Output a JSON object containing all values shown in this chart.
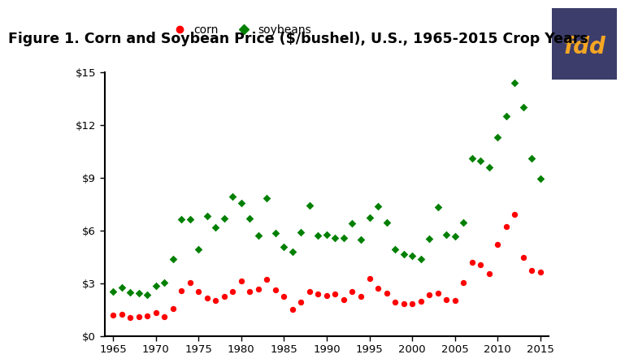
{
  "title": "Figure 1. Corn and Soybean Price ($/bushel), U.S., 1965-2015 Crop Years",
  "years": [
    1965,
    1966,
    1967,
    1968,
    1969,
    1970,
    1971,
    1972,
    1973,
    1974,
    1975,
    1976,
    1977,
    1978,
    1979,
    1980,
    1981,
    1982,
    1983,
    1984,
    1985,
    1986,
    1987,
    1988,
    1989,
    1990,
    1991,
    1992,
    1993,
    1994,
    1995,
    1996,
    1997,
    1998,
    1999,
    2000,
    2001,
    2002,
    2003,
    2004,
    2005,
    2006,
    2007,
    2008,
    2009,
    2010,
    2011,
    2012,
    2013,
    2014,
    2015
  ],
  "corn": [
    1.16,
    1.24,
    1.03,
    1.08,
    1.15,
    1.33,
    1.08,
    1.57,
    2.55,
    3.02,
    2.54,
    2.15,
    2.02,
    2.25,
    2.52,
    3.11,
    2.5,
    2.68,
    3.21,
    2.63,
    2.23,
    1.5,
    1.94,
    2.54,
    2.36,
    2.28,
    2.37,
    2.07,
    2.5,
    2.26,
    3.24,
    2.71,
    2.43,
    1.94,
    1.82,
    1.85,
    1.97,
    2.32,
    2.42,
    2.06,
    2.0,
    3.04,
    4.2,
    4.06,
    3.55,
    5.18,
    6.22,
    6.89,
    4.46,
    3.7,
    3.61
  ],
  "soybeans": [
    2.54,
    2.75,
    2.49,
    2.43,
    2.35,
    2.85,
    3.03,
    4.37,
    6.64,
    6.64,
    4.92,
    6.81,
    6.19,
    6.66,
    7.94,
    7.57,
    6.67,
    5.71,
    7.83,
    5.84,
    5.05,
    4.78,
    5.88,
    7.42,
    5.69,
    5.74,
    5.58,
    5.56,
    6.4,
    5.48,
    6.72,
    7.35,
    6.47,
    4.93,
    4.63,
    4.54,
    4.38,
    5.53,
    7.34,
    5.74,
    5.66,
    6.43,
    10.1,
    9.97,
    9.59,
    11.3,
    12.5,
    14.4,
    13.0,
    10.1,
    8.95
  ],
  "corn_color": "#FF0000",
  "soybean_color": "#008000",
  "corn_marker": "o",
  "soybean_marker": "D",
  "title_fontsize": 12.5,
  "fdd_bg_color": "#3d3d6b",
  "fdd_text_color": "#f5a623",
  "xlim": [
    1964,
    2016
  ],
  "ylim": [
    0,
    15
  ],
  "yticks": [
    0,
    3,
    6,
    9,
    12,
    15
  ],
  "ytick_labels": [
    "$0",
    "$3",
    "$6",
    "$9",
    "$12",
    "$15"
  ],
  "xticks": [
    1965,
    1970,
    1975,
    1980,
    1985,
    1990,
    1995,
    2000,
    2005,
    2010,
    2015
  ]
}
